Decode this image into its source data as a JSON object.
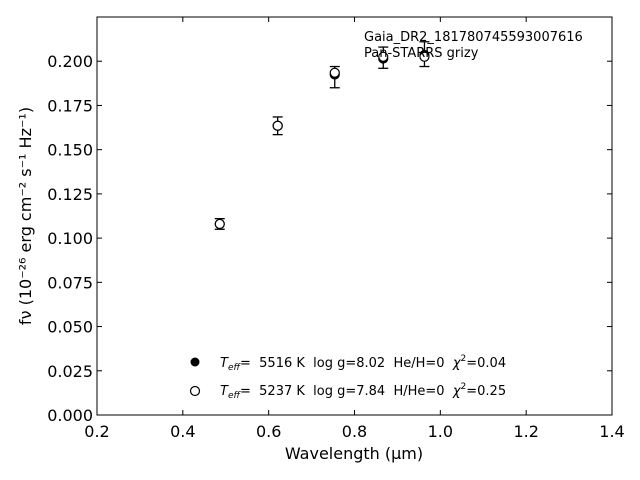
{
  "chart_data": {
    "type": "scatter",
    "title": "",
    "xlabel": "Wavelength (μm)",
    "ylabel": "fν (10⁻²⁶ erg cm⁻² s⁻¹ Hz⁻¹)",
    "xlim": [
      0.2,
      1.4
    ],
    "ylim": [
      0.0,
      0.225
    ],
    "xticks": [
      0.2,
      0.4,
      0.6,
      0.8,
      1.0,
      1.2,
      1.4
    ],
    "xtick_labels": [
      "0.2",
      "0.4",
      "0.6",
      "0.8",
      "1.0",
      "1.2",
      "1.4"
    ],
    "yticks": [
      0.0,
      0.025,
      0.05,
      0.075,
      0.1,
      0.125,
      0.15,
      0.175,
      0.2
    ],
    "ytick_labels": [
      "0.000",
      "0.025",
      "0.050",
      "0.075",
      "0.100",
      "0.125",
      "0.150",
      "0.175",
      "0.200"
    ],
    "grid": false,
    "annotations": [
      "Gaia_DR2_181780745593007616",
      "Pan-STARRS grizy"
    ],
    "observed": {
      "x": [
        0.486,
        0.621,
        0.754,
        0.867,
        0.963
      ],
      "y": [
        0.108,
        0.1635,
        0.191,
        0.202,
        0.204
      ],
      "err": [
        0.003,
        0.005,
        0.006,
        0.006,
        0.007
      ]
    },
    "series": [
      {
        "name": "Teff= 5516 K log g=8.02 He/H=0 χ²=0.04",
        "marker": "filled-circle",
        "x": [
          0.486,
          0.621,
          0.754,
          0.867,
          0.963
        ],
        "y": [
          0.108,
          0.1635,
          0.1925,
          0.2015,
          0.2035
        ]
      },
      {
        "name": "Teff= 5237 K log g=7.84 H/He=0 χ²=0.25",
        "marker": "open-circle",
        "x": [
          0.486,
          0.621,
          0.754,
          0.867,
          0.963
        ],
        "y": [
          0.108,
          0.1635,
          0.1935,
          0.2025,
          0.2025
        ]
      }
    ],
    "legend": [
      {
        "marker": "filled-circle",
        "teff_label": "T",
        "teff_sub": "eff",
        "text": "=  5516 K  log g=8.02  He/H=0  ",
        "chi_label": "χ",
        "chi_sup": "2",
        "chi_val": "=0.04"
      },
      {
        "marker": "open-circle",
        "teff_label": "T",
        "teff_sub": "eff",
        "text": "=  5237 K  log g=7.84  H/He=0  ",
        "chi_label": "χ",
        "chi_sup": "2",
        "chi_val": "=0.25"
      }
    ],
    "legend_position": "lower-center",
    "colors": {
      "marker": "#000000",
      "axes": "#000000",
      "background": "#ffffff"
    }
  }
}
